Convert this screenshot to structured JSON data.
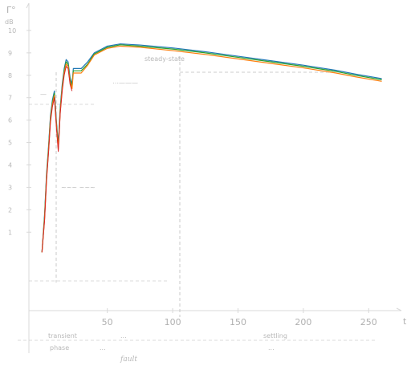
{
  "chart_data": {
    "type": "line",
    "xlabel": "t",
    "ylabel": "Γ°",
    "y_unit": "dB",
    "xlim": [
      -10,
      275
    ],
    "ylim": [
      -2.5,
      11
    ],
    "x_ticks": [
      "50",
      "100",
      "150",
      "200",
      "250"
    ],
    "x_tick_values": [
      50,
      100,
      150,
      200,
      250
    ],
    "y_ticks": [
      "1",
      "2",
      "3",
      "4",
      "5",
      "6",
      "7",
      "8",
      "9",
      "10"
    ],
    "y_tick_values": [
      1,
      2,
      3,
      4,
      5,
      6,
      7,
      8,
      9,
      10
    ],
    "grid": false,
    "series": [
      {
        "color": "#1f77b4",
        "x": [
          0,
          2,
          3.5,
          5,
          6.5,
          8,
          9.5,
          11,
          12.5,
          14,
          15.5,
          17,
          18.5,
          20,
          21.5,
          23,
          24,
          30,
          35,
          40,
          50,
          60,
          75,
          100,
          125,
          150,
          175,
          200,
          225,
          240,
          260
        ],
        "y": [
          0.1,
          1.8,
          3.6,
          4.8,
          6.2,
          6.9,
          7.3,
          6.0,
          4.9,
          6.6,
          7.6,
          8.3,
          8.7,
          8.6,
          7.9,
          7.6,
          8.3,
          8.3,
          8.6,
          9.0,
          9.3,
          9.4,
          9.35,
          9.22,
          9.05,
          8.85,
          8.65,
          8.45,
          8.22,
          8.05,
          7.85
        ]
      },
      {
        "color": "#2ca02c",
        "x": [
          0,
          2,
          3.5,
          5,
          6.5,
          8,
          9.5,
          11,
          12.5,
          14,
          15.5,
          17,
          18.5,
          20,
          21.5,
          23,
          24,
          30,
          35,
          40,
          50,
          60,
          75,
          100,
          125,
          150,
          175,
          200,
          225,
          240,
          260
        ],
        "y": [
          0.1,
          1.7,
          3.5,
          4.7,
          6.1,
          6.8,
          7.2,
          5.9,
          4.8,
          6.5,
          7.5,
          8.2,
          8.6,
          8.5,
          7.8,
          7.5,
          8.2,
          8.2,
          8.5,
          8.95,
          9.25,
          9.36,
          9.3,
          9.17,
          9.0,
          8.8,
          8.6,
          8.4,
          8.17,
          8.0,
          7.8
        ]
      },
      {
        "color": "#ff7f0e",
        "x": [
          0,
          2,
          3.5,
          5,
          6.5,
          8,
          9.5,
          11,
          12.5,
          14,
          15.5,
          17,
          18.5,
          20,
          21.5,
          23,
          24,
          30,
          35,
          40,
          50,
          60,
          75,
          100,
          125,
          150,
          175,
          200,
          225,
          240,
          260
        ],
        "y": [
          0.1,
          1.6,
          3.4,
          4.6,
          6.0,
          6.7,
          7.1,
          5.8,
          4.7,
          6.4,
          7.4,
          8.1,
          8.5,
          8.4,
          7.7,
          7.4,
          8.1,
          8.1,
          8.45,
          8.9,
          9.2,
          9.3,
          9.25,
          9.1,
          8.93,
          8.73,
          8.53,
          8.33,
          8.1,
          7.93,
          7.73
        ]
      },
      {
        "color": "#d62728",
        "x": [
          0,
          2,
          3.5,
          5,
          6.5,
          8,
          9.5,
          11,
          12.5,
          14,
          15.5,
          17,
          18.5,
          20,
          21.5,
          23
        ],
        "y": [
          0.1,
          1.5,
          3.3,
          4.5,
          5.9,
          6.6,
          7.0,
          5.7,
          4.6,
          6.3,
          7.3,
          8.0,
          8.4,
          8.3,
          7.6,
          7.3
        ]
      }
    ],
    "annotations": {
      "left_upper": "—",
      "left_mid": "⋯———",
      "left_lower": "~~~ ~~~",
      "steady": "steady-state",
      "bottom_groups": [
        {
          "line1": "transient",
          "line2": "phase"
        },
        {
          "line1": "...",
          "line2": "..."
        },
        {
          "line1": "settling",
          "line2": "..."
        }
      ],
      "bottom_italic": "fault"
    }
  }
}
